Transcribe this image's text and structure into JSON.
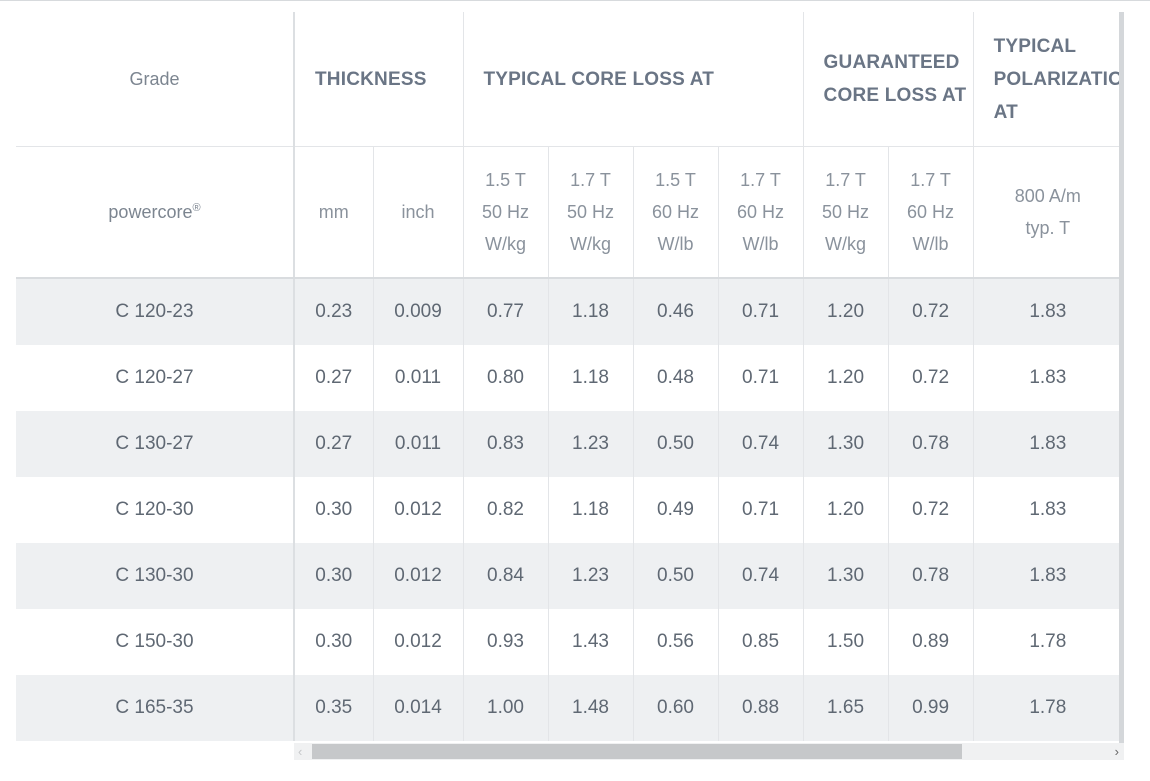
{
  "header": {
    "grade": "Grade",
    "thickness": "THICKNESS",
    "typical_core_loss": "TYPICAL CORE LOSS AT",
    "guaranteed_core_loss_line1": "GUARANTEED",
    "guaranteed_core_loss_line2": "CORE LOSS AT",
    "typical_polarization_line1": "TYPICAL",
    "typical_polarization_line2": "POLARIZATION",
    "typical_polarization_line3": "AT"
  },
  "subheader": {
    "brand": "powercore",
    "brand_mark": "®",
    "mm": "mm",
    "inch": "inch",
    "cols": [
      {
        "l1": "1.5 T",
        "l2": "50 Hz",
        "l3": "W/kg"
      },
      {
        "l1": "1.7 T",
        "l2": "50 Hz",
        "l3": "W/kg"
      },
      {
        "l1": "1.5 T",
        "l2": "60 Hz",
        "l3": "W/lb"
      },
      {
        "l1": "1.7 T",
        "l2": "60 Hz",
        "l3": "W/lb"
      },
      {
        "l1": "1.7 T",
        "l2": "50 Hz",
        "l3": "W/kg"
      },
      {
        "l1": "1.7 T",
        "l2": "60 Hz",
        "l3": "W/lb"
      }
    ],
    "polarization_l1": "800 A/m",
    "polarization_l2": "typ. T"
  },
  "rows": [
    [
      "C 120-23",
      "0.23",
      "0.009",
      "0.77",
      "1.18",
      "0.46",
      "0.71",
      "1.20",
      "0.72",
      "1.83"
    ],
    [
      "C 120-27",
      "0.27",
      "0.011",
      "0.80",
      "1.18",
      "0.48",
      "0.71",
      "1.20",
      "0.72",
      "1.83"
    ],
    [
      "C 130-27",
      "0.27",
      "0.011",
      "0.83",
      "1.23",
      "0.50",
      "0.74",
      "1.30",
      "0.78",
      "1.83"
    ],
    [
      "C 120-30",
      "0.30",
      "0.012",
      "0.82",
      "1.18",
      "0.49",
      "0.71",
      "1.20",
      "0.72",
      "1.83"
    ],
    [
      "C 130-30",
      "0.30",
      "0.012",
      "0.84",
      "1.23",
      "0.50",
      "0.74",
      "1.30",
      "0.78",
      "1.83"
    ],
    [
      "C 150-30",
      "0.30",
      "0.012",
      "0.93",
      "1.43",
      "0.56",
      "0.85",
      "1.50",
      "0.89",
      "1.78"
    ],
    [
      "C 165-35",
      "0.35",
      "0.014",
      "1.00",
      "1.48",
      "0.60",
      "0.88",
      "1.65",
      "0.99",
      "1.78"
    ]
  ],
  "scrollbar": {
    "left_arrow": "‹",
    "right_arrow": "›",
    "thumb_fraction": 0.78
  }
}
